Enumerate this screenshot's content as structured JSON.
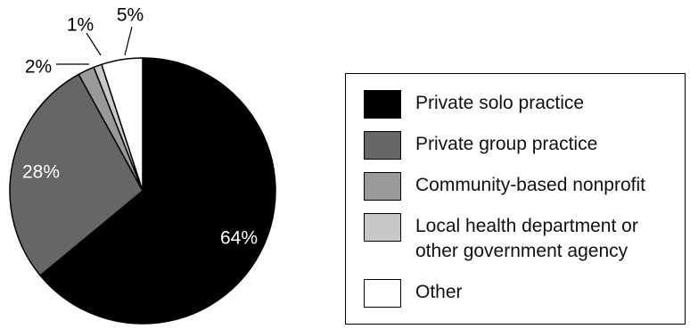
{
  "chart_data": {
    "type": "pie",
    "start": "top",
    "direction": "clockwise",
    "series": [
      {
        "name": "Private solo practice",
        "value": 64,
        "label": "64%",
        "color": "#000000",
        "label_color": "#ffffff"
      },
      {
        "name": "Private group practice",
        "value": 28,
        "label": "28%",
        "color": "#666666",
        "label_color": "#ffffff"
      },
      {
        "name": "Community-based nonprofit",
        "value": 2,
        "label": "2%",
        "color": "#999999",
        "label_color": "#000000"
      },
      {
        "name": "Local health department or\nother government agency",
        "value": 1,
        "label": "1%",
        "color": "#c8c8c8",
        "label_color": "#000000"
      },
      {
        "name": "Other",
        "value": 5,
        "label": "5%",
        "color": "#ffffff",
        "label_color": "#000000"
      }
    ],
    "legend_position": "right"
  }
}
